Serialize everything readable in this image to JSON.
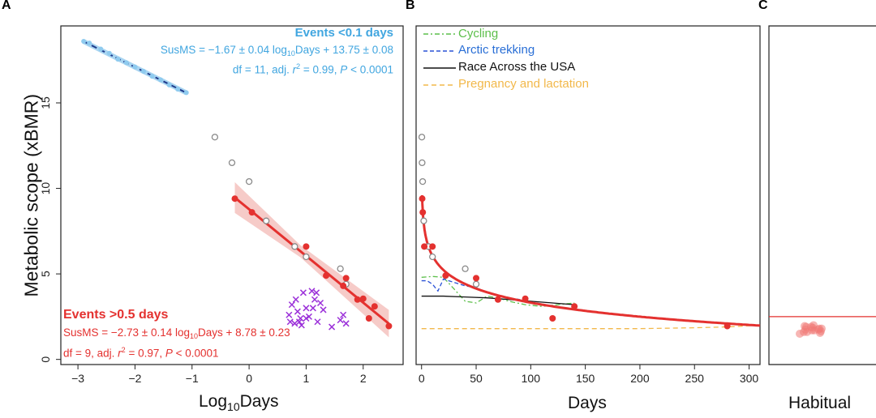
{
  "panels": {
    "a": "A",
    "b": "B",
    "c": "C"
  },
  "ylabel": "Metabolic scope (xBMR)",
  "colors": {
    "red": "#e4312f",
    "blue": "#41a6e0",
    "dark_blue": "#1f3b8c",
    "purple": "#9b30d9",
    "green": "#5cbf4a",
    "arctic": "#2a52d6",
    "orange": "#f2b84a",
    "gray": "#8a8a8a"
  },
  "annotations": {
    "blue_title": "Events <0.1 days",
    "blue_eq_1": "SusMS = −1.67 ± 0.04 log",
    "blue_eq_sub": "10",
    "blue_eq_2": "Days + 13.75 ± 0.08",
    "blue_stats_1": "df = 11, adj. ",
    "blue_stats_r": "r",
    "blue_stats_sup": "2",
    "blue_stats_2": " = 0.99, ",
    "blue_stats_p": "P",
    "blue_stats_3": " < 0.0001",
    "red_title": "Events >0.5 days",
    "red_eq_1": "SusMS = −2.73 ± 0.14 log",
    "red_eq_sub": "10",
    "red_eq_2": "Days + 8.78 ± 0.23",
    "red_stats_1": "df = 9, adj. ",
    "red_stats_r": "r",
    "red_stats_sup": "2",
    "red_stats_2": " = 0.97, ",
    "red_stats_p": "P",
    "red_stats_3": " < 0.0001"
  },
  "legend": {
    "cycling": "Cycling",
    "arctic": "Arctic trekking",
    "race": "Race Across the USA",
    "pregnancy": "Pregnancy and lactation"
  },
  "chart_data": [
    {
      "type": "scatter",
      "panel": "A",
      "xlabel_main": "Log",
      "xlabel_sub": "10",
      "xlabel_tail": "Days",
      "ylabel": "Metabolic scope (xBMR)",
      "xlim": [
        -3.3,
        2.7
      ],
      "ylim": [
        -0.3,
        19.5
      ],
      "xticks": [
        -3,
        -2,
        -1,
        0,
        1,
        2
      ],
      "yticks": [
        0,
        5,
        10,
        15
      ],
      "series": [
        {
          "name": "Events <0.1 days",
          "marker": "circle-filled-light",
          "x": [
            -2.9,
            -2.8,
            -2.6,
            -2.45,
            -2.3,
            -2.15,
            -2.0,
            -1.85,
            -1.7,
            -1.55,
            -1.4,
            -1.25,
            -1.1
          ],
          "y": [
            18.6,
            18.5,
            18.15,
            17.9,
            17.55,
            17.35,
            17.1,
            16.85,
            16.55,
            16.35,
            16.05,
            15.8,
            15.6
          ]
        },
        {
          "name": "Events >0.5 days",
          "marker": "circle-filled-red",
          "x": [
            -0.25,
            0.05,
            1.0,
            1.35,
            1.7,
            1.65,
            1.9,
            2.0,
            2.1,
            2.2,
            2.45
          ],
          "y": [
            9.4,
            8.6,
            6.6,
            4.9,
            4.75,
            4.3,
            3.5,
            3.55,
            2.4,
            3.1,
            1.95
          ]
        },
        {
          "name": "",
          "marker": "circle-open-gray",
          "x": [
            -0.6,
            -0.3,
            0.0,
            0.3,
            0.8,
            1.0,
            1.6,
            1.7
          ],
          "y": [
            13.0,
            11.5,
            10.4,
            8.1,
            6.6,
            6.0,
            5.3,
            4.4
          ]
        },
        {
          "name": "",
          "marker": "x-purple",
          "x": [
            0.7,
            0.75,
            0.8,
            0.85,
            0.9,
            0.95,
            1.0,
            1.05,
            1.1,
            1.15,
            1.2,
            1.25,
            1.3,
            0.72,
            0.82,
            0.92,
            1.45,
            1.6,
            1.65,
            1.7,
            1.0,
            1.12,
            0.88,
            1.18
          ],
          "y": [
            2.6,
            3.2,
            2.1,
            2.8,
            2.4,
            3.9,
            3.0,
            2.5,
            4.0,
            3.5,
            2.2,
            3.3,
            2.9,
            2.2,
            3.5,
            2.0,
            1.9,
            2.3,
            2.6,
            2.1,
            2.4,
            3.0,
            2.2,
            3.9
          ]
        }
      ],
      "fits": [
        {
          "name": "Events <0.1 days",
          "intercept": 13.75,
          "slope": -1.67,
          "x_range": [
            -2.9,
            -1.1
          ]
        },
        {
          "name": "Events >0.5 days",
          "intercept": 8.78,
          "slope": -2.73,
          "x_range": [
            -0.25,
            2.45
          ]
        }
      ]
    },
    {
      "type": "line",
      "panel": "B",
      "xlabel": "Days",
      "xlim": [
        -5,
        310
      ],
      "ylim": [
        -0.3,
        19.5
      ],
      "xticks": [
        0,
        50,
        100,
        150,
        200,
        250,
        300
      ],
      "series": [
        {
          "name": "Cycling",
          "x": [
            0,
            10,
            20,
            30,
            40,
            50,
            60,
            70,
            80,
            95,
            110,
            125,
            140
          ],
          "y": [
            4.8,
            4.85,
            4.8,
            4.1,
            3.4,
            3.3,
            3.7,
            3.6,
            3.4,
            3.2,
            3.1,
            3.2,
            3.3
          ]
        },
        {
          "name": "Arctic trekking",
          "x": [
            0,
            5,
            10,
            15,
            20,
            30,
            40,
            50,
            60,
            70,
            80,
            90
          ],
          "y": [
            4.6,
            4.6,
            4.4,
            4.0,
            4.7,
            4.5,
            4.3,
            4.2,
            3.9,
            3.7,
            3.6,
            3.5
          ]
        },
        {
          "name": "Race Across the USA",
          "x": [
            0,
            20,
            40,
            60,
            80,
            100,
            120,
            140
          ],
          "y": [
            3.7,
            3.7,
            3.65,
            3.6,
            3.5,
            3.4,
            3.3,
            3.2
          ]
        },
        {
          "name": "Pregnancy and lactation",
          "x": [
            0,
            50,
            100,
            150,
            200,
            250,
            280,
            310
          ],
          "y": [
            1.8,
            1.8,
            1.8,
            1.8,
            1.8,
            1.85,
            1.9,
            2.0
          ]
        }
      ],
      "points": {
        "red_x": [
          0.6,
          1.1,
          2.5,
          10,
          22,
          50,
          70,
          95,
          120,
          140,
          280
        ],
        "red_y": [
          9.4,
          8.6,
          6.6,
          6.6,
          4.9,
          4.75,
          3.5,
          3.55,
          2.4,
          3.1,
          1.95
        ],
        "gray_x": [
          0.25,
          0.5,
          1.0,
          2.0,
          6.3,
          10,
          40,
          50
        ],
        "gray_y": [
          13.0,
          11.5,
          10.4,
          8.1,
          6.6,
          6.0,
          5.3,
          4.4
        ]
      }
    },
    {
      "type": "scatter",
      "panel": "C",
      "xlabel": "Habitual",
      "ylim": [
        -0.3,
        19.5
      ],
      "hline": 2.5,
      "points_y": [
        1.5,
        1.6,
        1.7,
        1.8,
        1.9,
        2.0,
        1.65,
        1.75,
        1.85,
        1.55,
        1.95,
        1.7,
        1.8,
        1.6,
        1.9,
        1.75
      ]
    }
  ]
}
